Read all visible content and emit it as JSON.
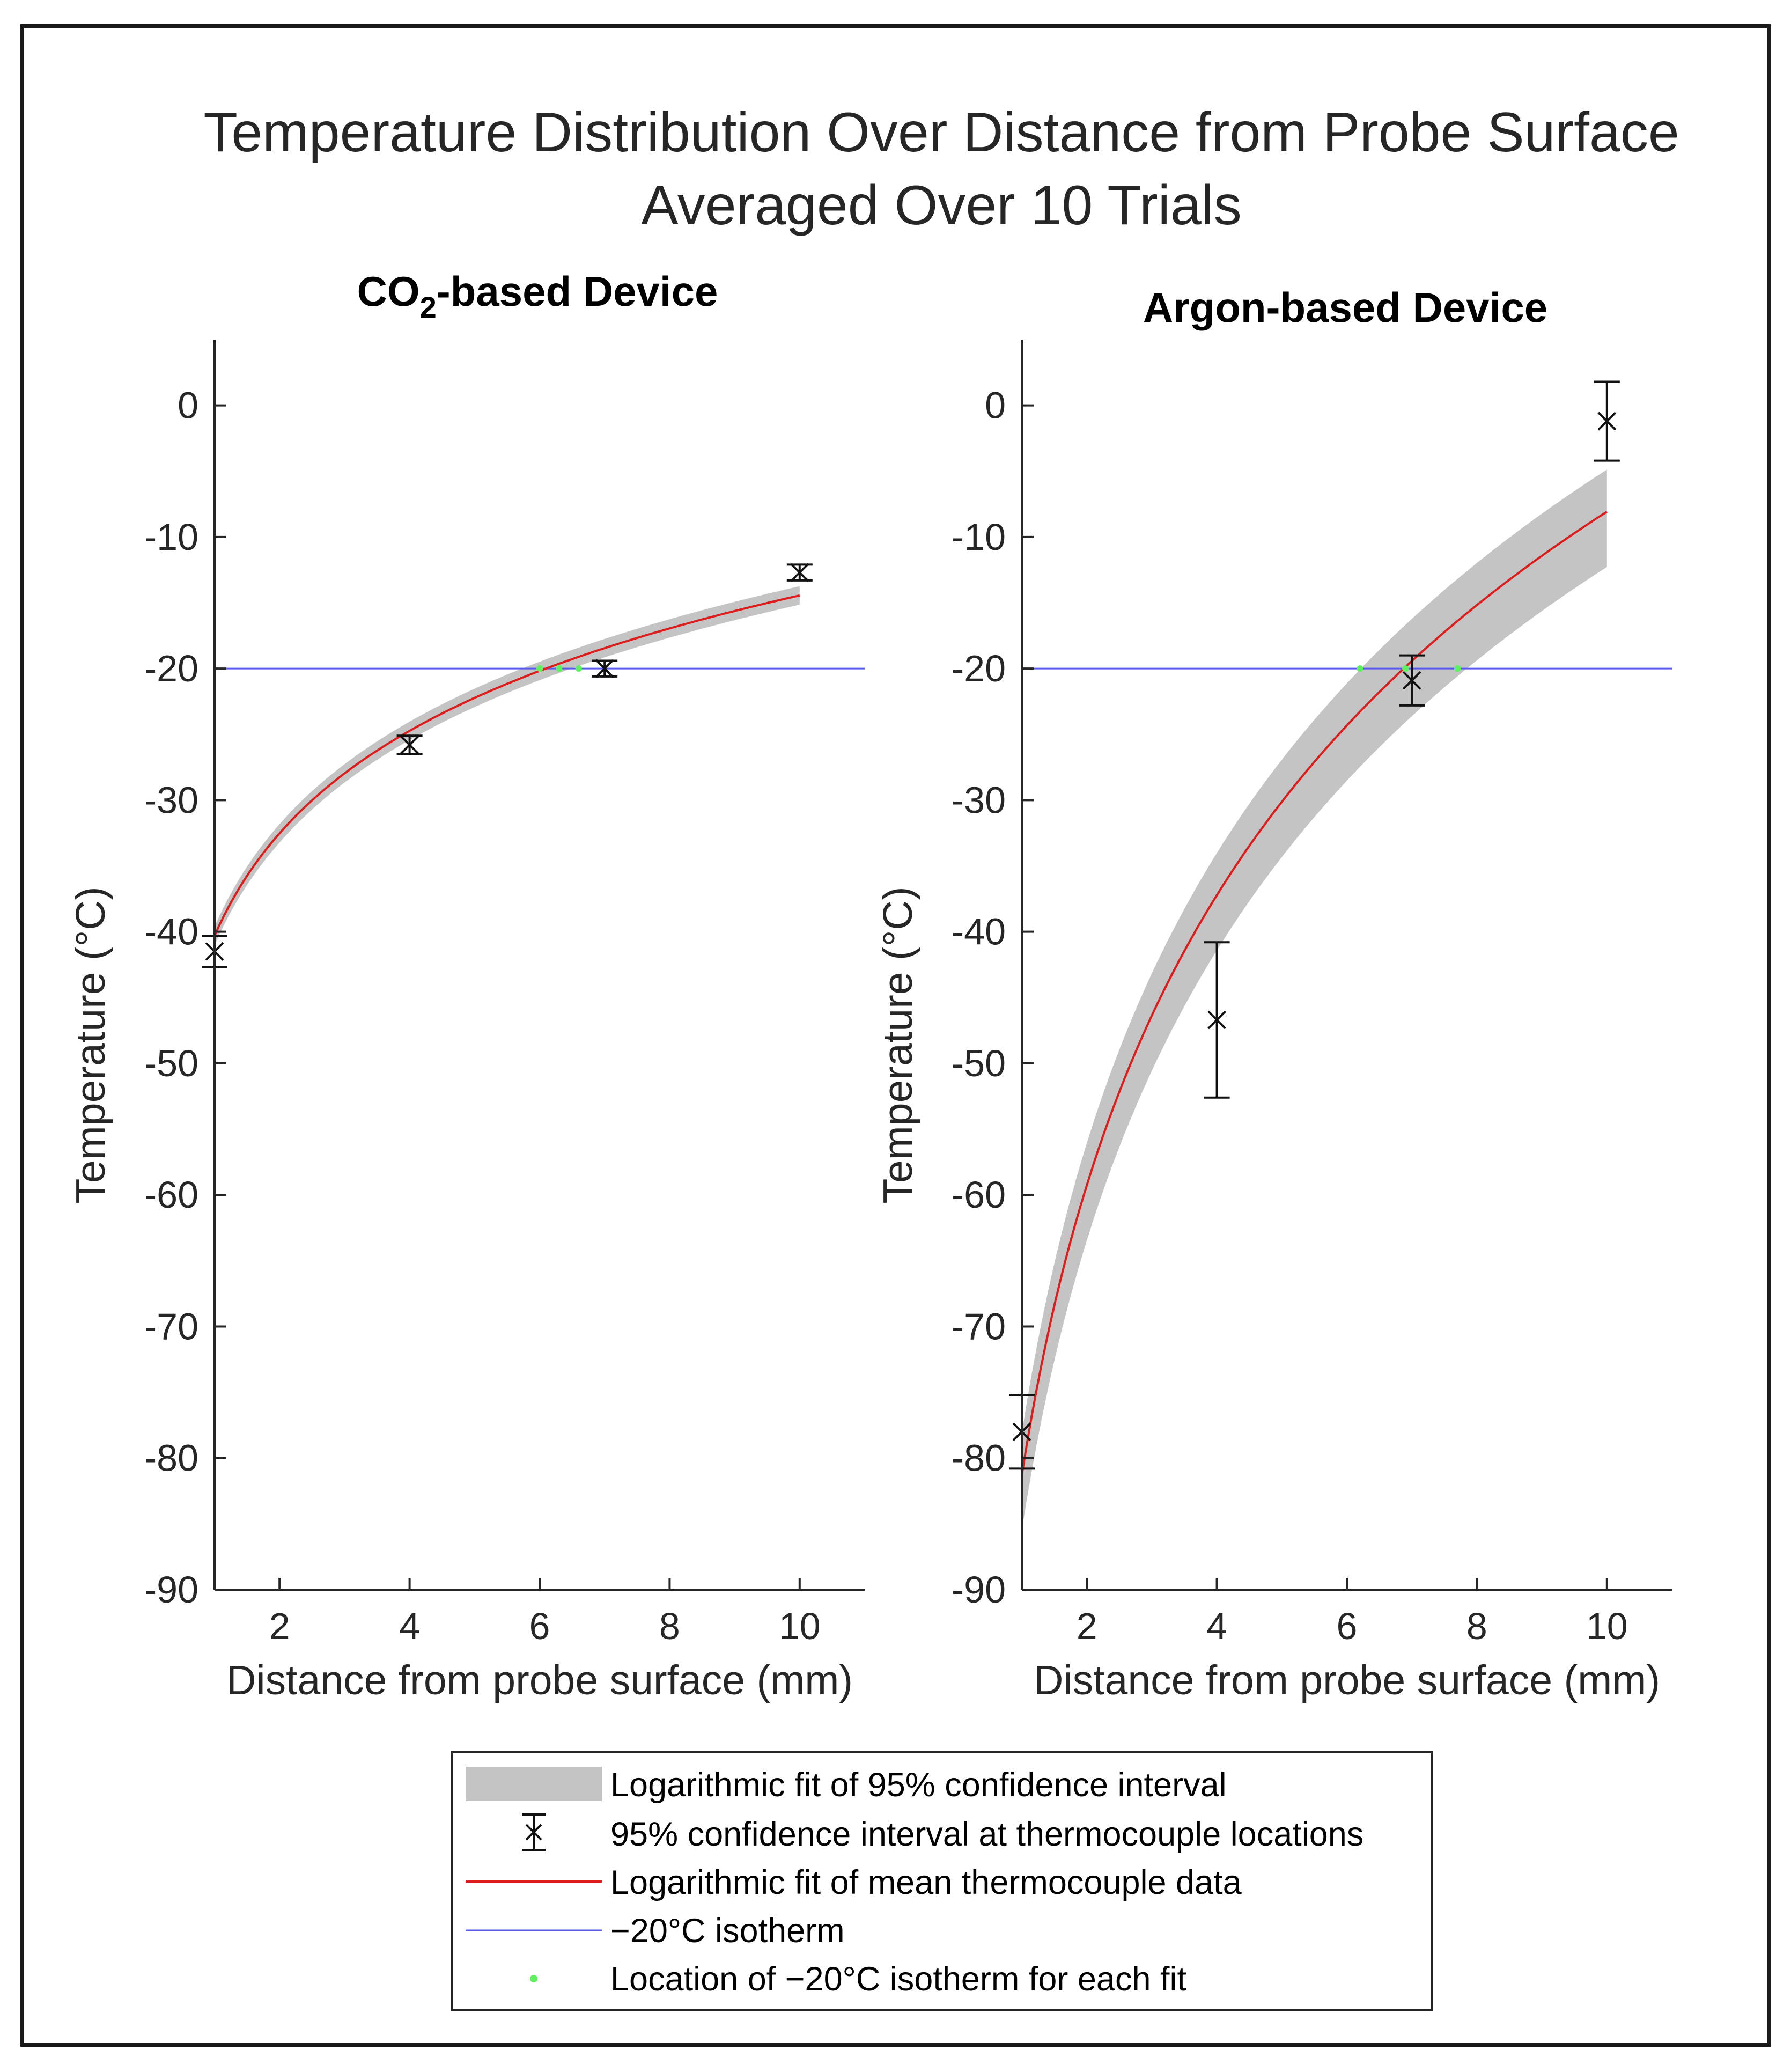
{
  "chart_data": {
    "title": [
      "Temperature Distribution Over Distance from Probe Surface",
      "Averaged Over 10 Trials"
    ],
    "type": "line",
    "panels": [
      {
        "id": "co2",
        "title_main": "CO",
        "title_sub": "2",
        "title_rest": "-based Device",
        "xlabel": "Distance from probe surface (mm)",
        "ylabel": "Temperature (°C)",
        "xlim": [
          1,
          11
        ],
        "ylim": [
          -90,
          5
        ],
        "xticks": [
          2,
          4,
          6,
          8,
          10
        ],
        "yticks": [
          0,
          -10,
          -20,
          -30,
          -40,
          -50,
          -60,
          -70,
          -80,
          -90
        ],
        "points": [
          {
            "x": 1,
            "y": -41.5,
            "lo": -42.7,
            "hi": -40.3
          },
          {
            "x": 4,
            "y": -25.8,
            "lo": -26.5,
            "hi": -25.1
          },
          {
            "x": 7,
            "y": -20.0,
            "lo": -20.6,
            "hi": -19.4
          },
          {
            "x": 10,
            "y": -12.7,
            "lo": -13.3,
            "hi": -12.1
          }
        ],
        "fit": {
          "a": -40.3,
          "b": 11.23,
          "band_lo": 0.7,
          "band_hi": 0.7,
          "x_range": [
            1,
            10
          ]
        },
        "isotherm": -20,
        "isotherm_points": [
          {
            "x": 6.0,
            "y": -20
          },
          {
            "x": 6.3,
            "y": -20
          },
          {
            "x": 6.6,
            "y": -20
          }
        ]
      },
      {
        "id": "argon",
        "title_main": "Argon-based Device",
        "title_sub": "",
        "title_rest": "",
        "xlabel": "Distance from probe surface (mm)",
        "ylabel": "Temperature (°C)",
        "xlim": [
          1,
          11
        ],
        "ylim": [
          -90,
          5
        ],
        "xticks": [
          2,
          4,
          6,
          8,
          10
        ],
        "yticks": [
          0,
          -10,
          -20,
          -30,
          -40,
          -50,
          -60,
          -70,
          -80,
          -90
        ],
        "points": [
          {
            "x": 1,
            "y": -78.0,
            "lo": -80.8,
            "hi": -75.2
          },
          {
            "x": 4,
            "y": -46.7,
            "lo": -52.6,
            "hi": -40.8
          },
          {
            "x": 7,
            "y": -20.9,
            "lo": -22.8,
            "hi": -19.0
          },
          {
            "x": 10,
            "y": -1.2,
            "lo": -4.2,
            "hi": 1.8
          }
        ],
        "fit": {
          "a": -81.3,
          "b": 31.8,
          "band_lo": 4.2,
          "band_hi": 3.2,
          "x_range": [
            1,
            10
          ]
        },
        "isotherm": -20,
        "isotherm_points": [
          {
            "x": 6.2,
            "y": -20
          },
          {
            "x": 6.9,
            "y": -20
          },
          {
            "x": 7.7,
            "y": -20
          }
        ]
      }
    ],
    "legend": {
      "position": "bottom-center",
      "entries": [
        {
          "label": "Logarithmic fit of 95% confidence interval",
          "symbol": "band"
        },
        {
          "label": "95% confidence interval at thermocouple locations",
          "symbol": "errorbar"
        },
        {
          "label": "Logarithmic fit of mean thermocouple data",
          "symbol": "red-line"
        },
        {
          "label": "−20°C isotherm",
          "symbol": "blue-line"
        },
        {
          "label": "Location of −20°C isotherm for each fit",
          "symbol": "green-dot"
        }
      ]
    },
    "colors": {
      "band": "#c4c4c4",
      "fit": "#dd1c1c",
      "isotherm": "#5a5aee",
      "marker": "#111111",
      "isopoint": "#5ef05e",
      "axis": "#262626"
    }
  }
}
